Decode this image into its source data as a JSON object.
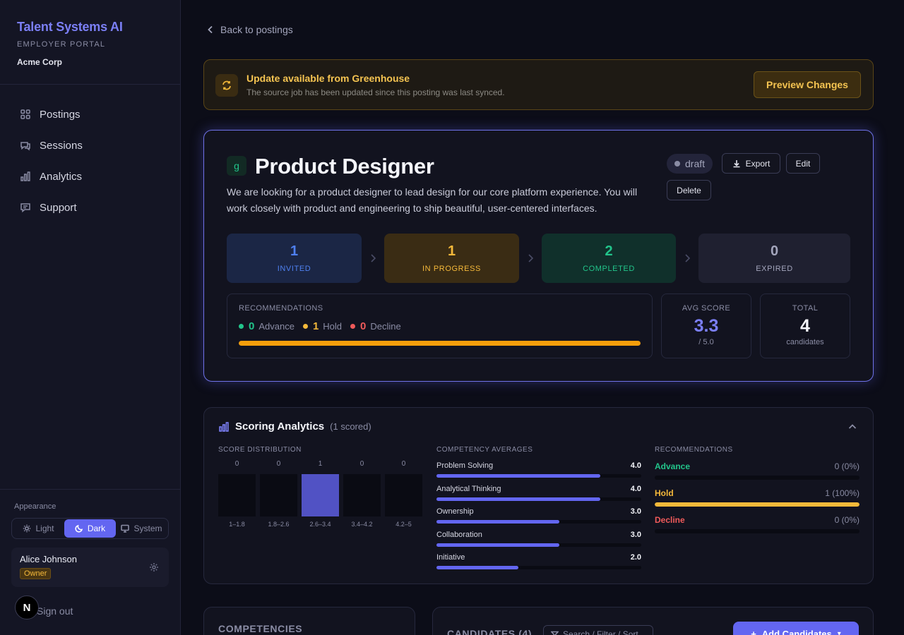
{
  "sidebar": {
    "brand_title": "Talent Systems AI",
    "brand_sub": "EMPLOYER PORTAL",
    "org": "Acme Corp",
    "nav": [
      {
        "label": "Postings",
        "icon": "grid-icon"
      },
      {
        "label": "Sessions",
        "icon": "chat-icon"
      },
      {
        "label": "Analytics",
        "icon": "bar-chart-icon"
      },
      {
        "label": "Support",
        "icon": "message-icon"
      }
    ],
    "appearance_label": "Appearance",
    "theme_options": [
      "Light",
      "Dark",
      "System"
    ],
    "theme_selected": "Dark",
    "user_name": "Alice Johnson",
    "user_role": "Owner",
    "sign_out": "Sign out",
    "n_badge": "N"
  },
  "main": {
    "back_label": "Back to postings",
    "banner": {
      "title": "Update available from Greenhouse",
      "subtitle": "The source job has been updated since this posting was last synced.",
      "button": "Preview Changes"
    },
    "posting": {
      "logo": "g",
      "title": "Product Designer",
      "description": "We are looking for a product designer to lead design for our core platform experience. You will work closely with product and engineering to ship beautiful, user-centered interfaces.",
      "status": "draft",
      "export_label": "Export",
      "edit_label": "Edit",
      "delete_label": "Delete",
      "stages": [
        {
          "count": "1",
          "label": "INVITED",
          "color": "#4f80f0",
          "bg": "#1b2645"
        },
        {
          "count": "1",
          "label": "IN PROGRESS",
          "color": "#f5b93a",
          "bg": "#3a2c14"
        },
        {
          "count": "2",
          "label": "COMPLETED",
          "color": "#22c58b",
          "bg": "#10302b"
        },
        {
          "count": "0",
          "label": "EXPIRED",
          "color": "#a3a5bc",
          "bg": "#1f2030"
        }
      ],
      "recommendations": {
        "label": "RECOMMENDATIONS",
        "items": [
          {
            "count": "0",
            "name": "Advance",
            "color": "#22c58b"
          },
          {
            "count": "1",
            "name": "Hold",
            "color": "#f5b93a"
          },
          {
            "count": "0",
            "name": "Decline",
            "color": "#ef5a5a"
          }
        ],
        "hold_fraction": 1.0
      },
      "avg_score": {
        "label": "AVG SCORE",
        "value": "3.3",
        "sub": "/ 5.0"
      },
      "total": {
        "label": "TOTAL",
        "value": "4",
        "sub": "candidates"
      }
    },
    "analytics": {
      "title": "Scoring Analytics",
      "count": "(1 scored)",
      "distribution_label": "SCORE DISTRIBUTION",
      "distribution": [
        {
          "range": "1–1.8",
          "count": 0
        },
        {
          "range": "1.8–2.6",
          "count": 0
        },
        {
          "range": "2.6–3.4",
          "count": 1
        },
        {
          "range": "3.4–4.2",
          "count": 0
        },
        {
          "range": "4.2–5",
          "count": 0
        }
      ],
      "competency_label": "COMPETENCY AVERAGES",
      "competencies": [
        {
          "name": "Problem Solving",
          "value": "4.0"
        },
        {
          "name": "Analytical Thinking",
          "value": "4.0"
        },
        {
          "name": "Ownership",
          "value": "3.0"
        },
        {
          "name": "Collaboration",
          "value": "3.0"
        },
        {
          "name": "Initiative",
          "value": "2.0"
        }
      ],
      "recommendations_label": "RECOMMENDATIONS",
      "recommendations": [
        {
          "name": "Advance",
          "value": "0 (0%)",
          "fraction": 0,
          "color": "#22c58b"
        },
        {
          "name": "Hold",
          "value": "1 (100%)",
          "fraction": 1,
          "color": "#f5b93a"
        },
        {
          "name": "Decline",
          "value": "0 (0%)",
          "fraction": 0,
          "color": "#ef5a5a"
        }
      ]
    },
    "competencies_card_title": "COMPETENCIES",
    "candidates_card_title": "CANDIDATES (4)",
    "candidates_search_placeholder": "Search / Filter / Sort",
    "add_candidates_label": "Add Candidates"
  }
}
